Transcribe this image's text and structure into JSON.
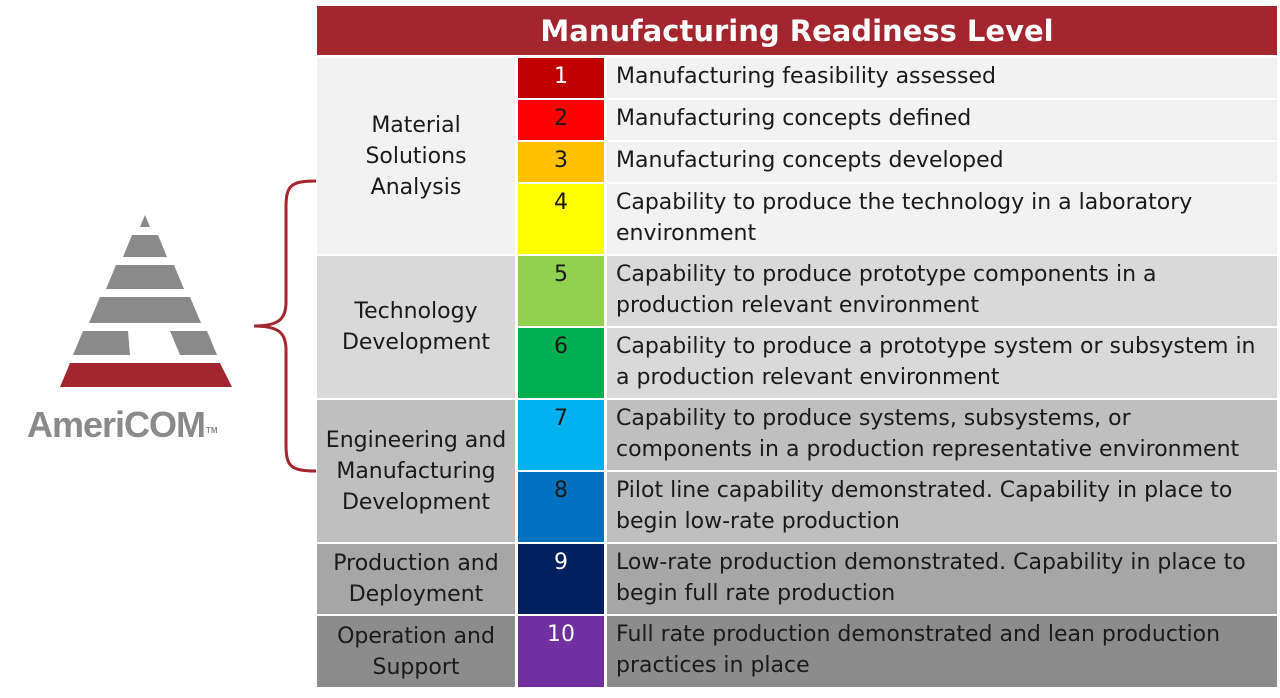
{
  "brand": {
    "name": "AmeriCOM",
    "trademark": "TM"
  },
  "colors": {
    "header": "#a3262e",
    "logo_red": "#a3262e",
    "logo_gray": "#8a8a8a"
  },
  "title": "Manufacturing Readiness Level",
  "phases": [
    {
      "label": "Material Solutions Analysis",
      "bg": "#f2f2f2"
    },
    {
      "label": "Technology Development",
      "bg": "#d9d9d9"
    },
    {
      "label": "Engineering and Manufacturing Development",
      "bg": "#bfbfbf"
    },
    {
      "label": "Production and Deployment",
      "bg": "#a6a6a6"
    },
    {
      "label": "Operation and Support",
      "bg": "#8c8c8c"
    }
  ],
  "levels": [
    {
      "level": "1",
      "color": "#c00000",
      "text_color": "#ffffff",
      "description": "Manufacturing feasibility assessed"
    },
    {
      "level": "2",
      "color": "#ff0000",
      "text_color": "#1a1a1a",
      "description": "Manufacturing concepts defined"
    },
    {
      "level": "3",
      "color": "#ffc000",
      "text_color": "#1a1a1a",
      "description": "Manufacturing concepts developed"
    },
    {
      "level": "4",
      "color": "#ffff00",
      "text_color": "#1a1a1a",
      "description": "Capability to produce the technology in a laboratory environment"
    },
    {
      "level": "5",
      "color": "#92d050",
      "text_color": "#1a1a1a",
      "description": "Capability to produce prototype components in a production relevant environment"
    },
    {
      "level": "6",
      "color": "#00b050",
      "text_color": "#1a1a1a",
      "description": "Capability to produce a prototype system or subsystem in a production relevant environment"
    },
    {
      "level": "7",
      "color": "#00b0f0",
      "text_color": "#1a1a1a",
      "description": "Capability to produce systems, subsystems, or components in a production representative environment"
    },
    {
      "level": "8",
      "color": "#0070c0",
      "text_color": "#1a1a1a",
      "description": "Pilot line capability demonstrated. Capability in place to begin low-rate production"
    },
    {
      "level": "9",
      "color": "#002060",
      "text_color": "#ffffff",
      "description": "Low-rate production demonstrated. Capability in place to begin full rate production"
    },
    {
      "level": "10",
      "color": "#7030a0",
      "text_color": "#ffffff",
      "description": "Full rate production demonstrated and lean production practices in place"
    }
  ]
}
